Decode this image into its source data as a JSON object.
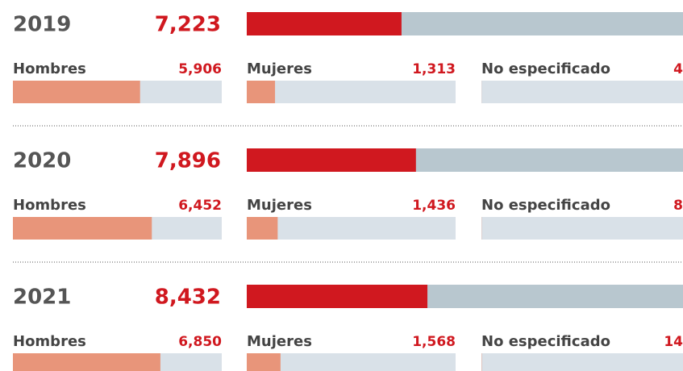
{
  "chart_data": {
    "type": "bar",
    "total_xlim": [
      0,
      20700
    ],
    "xlim": [
      0,
      9700
    ],
    "colors": {
      "total": "#d0181f",
      "total_track": "#b8c7cf",
      "group": "#e8957a",
      "group_track": "#d9e1e8"
    },
    "years": [
      {
        "year": "2019",
        "total": 7223,
        "total_label": "7,223",
        "groups": [
          {
            "label": "Hombres",
            "value": 5906,
            "value_label": "5,906"
          },
          {
            "label": "Mujeres",
            "value": 1313,
            "value_label": "1,313"
          },
          {
            "label": "No especificado",
            "value": 4,
            "value_label": "4"
          }
        ]
      },
      {
        "year": "2020",
        "total": 7896,
        "total_label": "7,896",
        "groups": [
          {
            "label": "Hombres",
            "value": 6452,
            "value_label": "6,452"
          },
          {
            "label": "Mujeres",
            "value": 1436,
            "value_label": "1,436"
          },
          {
            "label": "No especificado",
            "value": 8,
            "value_label": "8"
          }
        ]
      },
      {
        "year": "2021",
        "total": 8432,
        "total_label": "8,432",
        "groups": [
          {
            "label": "Hombres",
            "value": 6850,
            "value_label": "6,850"
          },
          {
            "label": "Mujeres",
            "value": 1568,
            "value_label": "1,568"
          },
          {
            "label": "No especificado",
            "value": 14,
            "value_label": "14"
          }
        ]
      }
    ]
  }
}
